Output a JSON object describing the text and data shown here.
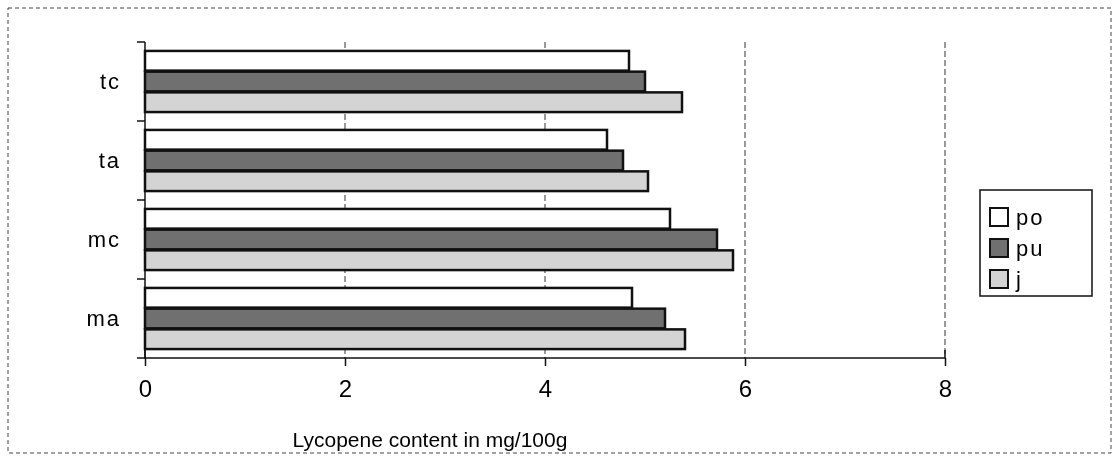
{
  "chart_data": {
    "type": "bar",
    "orientation": "horizontal",
    "xlabel": "Lycopene content in mg/100g",
    "categories": [
      "tc",
      "ta",
      "mc",
      "ma"
    ],
    "series": [
      {
        "name": "po",
        "color": "#ffffff",
        "values": [
          4.84,
          4.62,
          5.25,
          4.87
        ]
      },
      {
        "name": "pu",
        "color": "#707070",
        "values": [
          5.0,
          4.78,
          5.72,
          5.2
        ]
      },
      {
        "name": "j",
        "color": "#d4d4d4",
        "values": [
          5.37,
          5.03,
          5.88,
          5.4
        ]
      }
    ],
    "xlim": [
      0,
      8
    ],
    "xticks": [
      0,
      2,
      4,
      6,
      8
    ],
    "grid": "x",
    "legend": "right"
  }
}
